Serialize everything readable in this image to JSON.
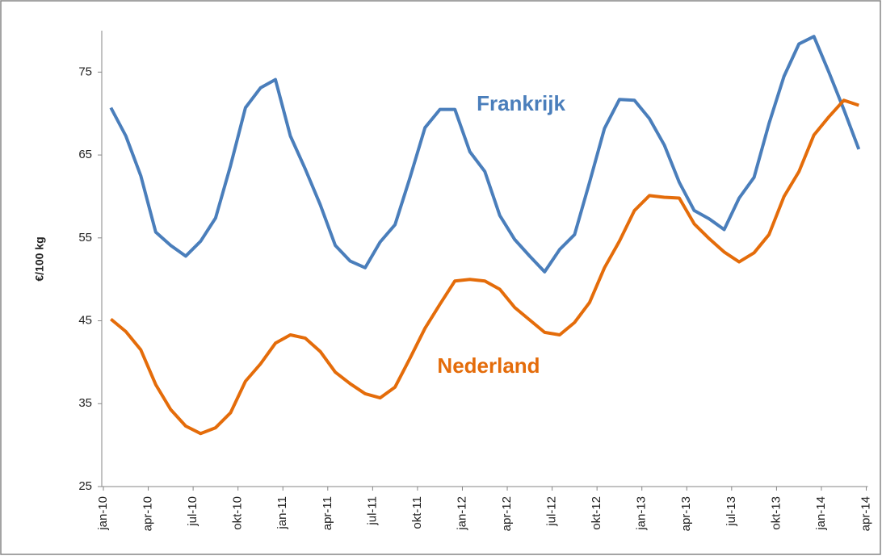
{
  "chart_data": {
    "type": "line",
    "y_label": "€/100 kg",
    "categories": [
      "jan-10",
      null,
      null,
      "apr-10",
      null,
      null,
      "jul-10",
      null,
      null,
      "okt-10",
      null,
      null,
      "jan-11",
      null,
      null,
      "apr-11",
      null,
      null,
      "jul-11",
      null,
      null,
      "okt-11",
      null,
      null,
      "jan-12",
      null,
      null,
      "apr-12",
      null,
      null,
      "jul-12",
      null,
      null,
      "okt-12",
      null,
      null,
      "jan-13",
      null,
      null,
      "apr-13",
      null,
      null,
      "jul-13",
      null,
      null,
      "okt-13",
      null,
      null,
      "jan-14",
      null,
      null,
      "apr-14"
    ],
    "series": [
      {
        "name": "Frankrijk",
        "color": "#4a7ebb",
        "values": [
          70.7,
          67.3,
          62.5,
          55.7,
          54.1,
          52.8,
          54.6,
          57.4,
          63.7,
          70.7,
          73.1,
          74.1,
          67.3,
          63.3,
          59.0,
          54.1,
          52.2,
          51.4,
          54.5,
          56.6,
          62.3,
          68.3,
          70.5,
          70.5,
          65.4,
          63.0,
          57.7,
          54.8,
          52.8,
          50.9,
          53.6,
          55.4,
          61.7,
          68.2,
          71.7,
          71.6,
          69.4,
          66.2,
          61.7,
          58.3,
          57.3,
          56.0,
          59.8,
          62.3,
          68.8,
          74.5,
          78.4,
          79.3,
          75.0,
          70.5,
          65.7,
          null
        ]
      },
      {
        "name": "Nederland",
        "color": "#e46c0a",
        "values": [
          45.2,
          43.7,
          41.5,
          37.3,
          34.3,
          32.3,
          31.4,
          32.1,
          33.9,
          37.7,
          39.8,
          42.3,
          43.3,
          42.9,
          41.3,
          38.8,
          37.4,
          36.2,
          35.7,
          37.0,
          40.5,
          44.1,
          47.0,
          49.8,
          50.0,
          49.8,
          48.8,
          46.6,
          45.1,
          43.6,
          43.3,
          44.8,
          47.2,
          51.4,
          54.6,
          58.3,
          60.1,
          59.9,
          59.8,
          56.7,
          54.9,
          53.3,
          52.1,
          53.2,
          55.4,
          60.0,
          63.0,
          67.4,
          69.6,
          71.6,
          71.0,
          null
        ]
      }
    ],
    "ylim": [
      25,
      80
    ],
    "yticks": [
      25,
      35,
      45,
      55,
      65,
      75
    ],
    "grid": false
  }
}
